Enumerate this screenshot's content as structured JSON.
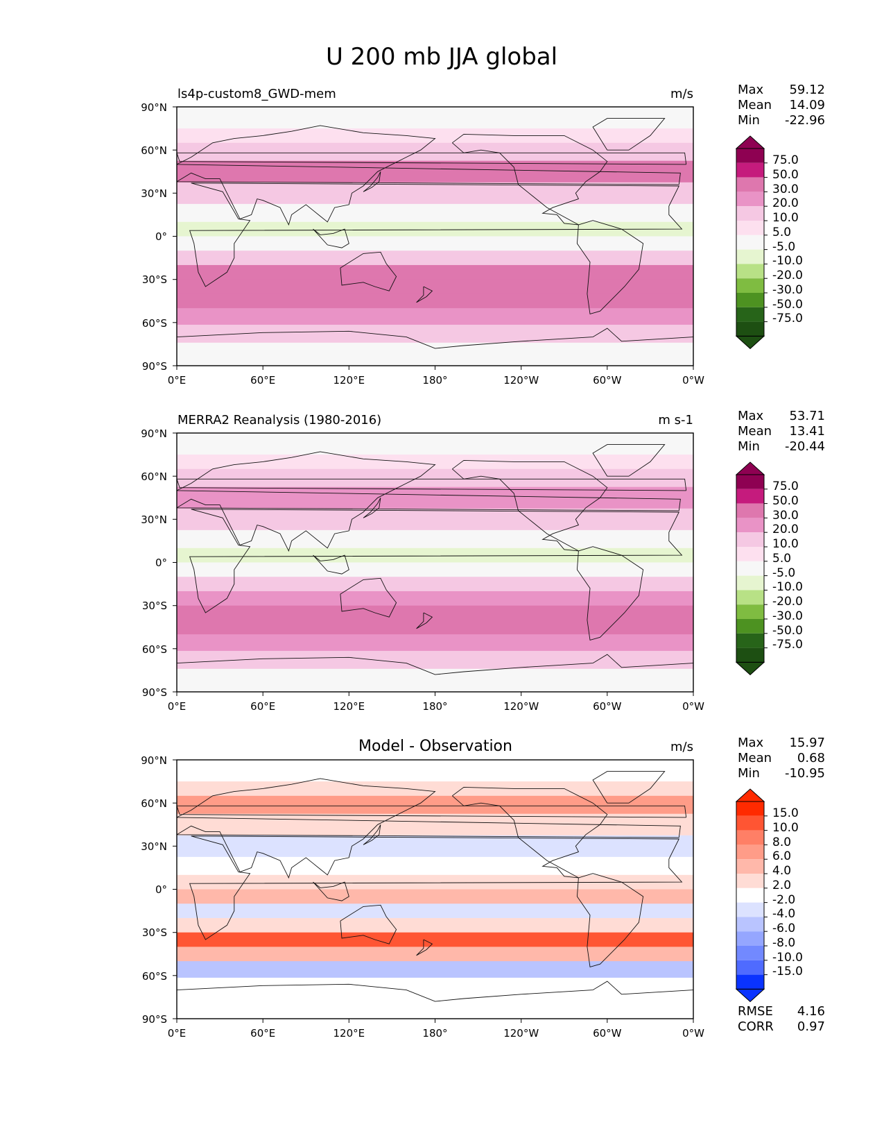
{
  "figure_title": "U 200 mb JJA global",
  "lat_ticks": [
    "90°N",
    "60°N",
    "30°N",
    "0°",
    "30°S",
    "60°S",
    "90°S"
  ],
  "lon_ticks": [
    "0°E",
    "60°E",
    "120°E",
    "180°",
    "120°W",
    "60°W",
    "0°W"
  ],
  "chart_data": [
    {
      "type": "contour-map",
      "left_title": "ls4p-custom8_GWD-mem",
      "center_title": "",
      "units": "m/s",
      "stats": {
        "labels": [
          "Max",
          "Mean",
          "Min"
        ],
        "values": [
          "59.12",
          "14.09",
          "-22.96"
        ]
      },
      "colorbar": {
        "levels": [
          "75.0",
          "50.0",
          "30.0",
          "20.0",
          "10.0",
          "5.0",
          "-5.0",
          "-10.0",
          "-20.0",
          "-30.0",
          "-50.0",
          "-75.0"
        ],
        "colors": [
          "#8e0152",
          "#c51b7d",
          "#de77ae",
          "#e993c6",
          "#f5c8e3",
          "#fde0ef",
          "#f7f7f7",
          "#e6f5d0",
          "#b8e186",
          "#7fbc41",
          "#4d9221",
          "#276419",
          "#1d4f12"
        ]
      },
      "bands": [
        {
          "lat": 80,
          "value": 2
        },
        {
          "lat": 70,
          "value": 8
        },
        {
          "lat": 60,
          "value": 15
        },
        {
          "lat": 45,
          "value": 32
        },
        {
          "lat": 30,
          "value": 12
        },
        {
          "lat": 15,
          "value": -5
        },
        {
          "lat": 5,
          "value": -8
        },
        {
          "lat": -5,
          "value": 3
        },
        {
          "lat": -15,
          "value": 14
        },
        {
          "lat": -25,
          "value": 30
        },
        {
          "lat": -35,
          "value": 45
        },
        {
          "lat": -45,
          "value": 32
        },
        {
          "lat": -55,
          "value": 25
        },
        {
          "lat": -68,
          "value": 12
        },
        {
          "lat": -80,
          "value": 3
        }
      ]
    },
    {
      "type": "contour-map",
      "left_title": "MERRA2 Reanalysis (1980-2016)",
      "center_title": "",
      "units": "m s-1",
      "stats": {
        "labels": [
          "Max",
          "Mean",
          "Min"
        ],
        "values": [
          "53.71",
          "13.41",
          "-20.44"
        ]
      },
      "colorbar": {
        "levels": [
          "75.0",
          "50.0",
          "30.0",
          "20.0",
          "10.0",
          "5.0",
          "-5.0",
          "-10.0",
          "-20.0",
          "-30.0",
          "-50.0",
          "-75.0"
        ],
        "colors": [
          "#8e0152",
          "#c51b7d",
          "#de77ae",
          "#e993c6",
          "#f5c8e3",
          "#fde0ef",
          "#f7f7f7",
          "#e6f5d0",
          "#b8e186",
          "#7fbc41",
          "#4d9221",
          "#276419",
          "#1d4f12"
        ]
      },
      "bands": [
        {
          "lat": 80,
          "value": 2
        },
        {
          "lat": 70,
          "value": 8
        },
        {
          "lat": 60,
          "value": 12
        },
        {
          "lat": 45,
          "value": 28
        },
        {
          "lat": 30,
          "value": 10
        },
        {
          "lat": 15,
          "value": -4
        },
        {
          "lat": 5,
          "value": -7
        },
        {
          "lat": -5,
          "value": 2
        },
        {
          "lat": -15,
          "value": 12
        },
        {
          "lat": -25,
          "value": 28
        },
        {
          "lat": -35,
          "value": 40
        },
        {
          "lat": -45,
          "value": 30
        },
        {
          "lat": -55,
          "value": 22
        },
        {
          "lat": -68,
          "value": 10
        },
        {
          "lat": -80,
          "value": 2
        }
      ]
    },
    {
      "type": "contour-map",
      "left_title": "",
      "center_title": "Model - Observation",
      "units": "m/s",
      "stats": {
        "labels": [
          "Max",
          "Mean",
          "Min"
        ],
        "values": [
          "15.97",
          "0.68",
          "-10.95"
        ]
      },
      "colorbar": {
        "levels": [
          "15.0",
          "10.0",
          "8.0",
          "6.0",
          "4.0",
          "2.0",
          "-2.0",
          "-4.0",
          "-6.0",
          "-8.0",
          "-10.0",
          "-15.0"
        ],
        "colors": [
          "#ff2a00",
          "#ff5533",
          "#ff7f66",
          "#ff9c88",
          "#ffb8aa",
          "#ffdcd5",
          "#ffffff",
          "#dce2ff",
          "#b9c4ff",
          "#95a6ff",
          "#7289ff",
          "#4f6bff",
          "#0a33ff"
        ]
      },
      "bands": [
        {
          "lat": 80,
          "value": 1
        },
        {
          "lat": 70,
          "value": 3
        },
        {
          "lat": 60,
          "value": 7
        },
        {
          "lat": 45,
          "value": 2
        },
        {
          "lat": 30,
          "value": -4
        },
        {
          "lat": 15,
          "value": 1
        },
        {
          "lat": 5,
          "value": 3
        },
        {
          "lat": -5,
          "value": 4
        },
        {
          "lat": -15,
          "value": -3
        },
        {
          "lat": -25,
          "value": 3
        },
        {
          "lat": -35,
          "value": 11
        },
        {
          "lat": -45,
          "value": 4
        },
        {
          "lat": -55,
          "value": -6
        },
        {
          "lat": -68,
          "value": -2
        },
        {
          "lat": -80,
          "value": 0
        }
      ],
      "extra_stats": {
        "labels": [
          "RMSE",
          "CORR"
        ],
        "values": [
          "4.16",
          "0.97"
        ]
      }
    }
  ]
}
